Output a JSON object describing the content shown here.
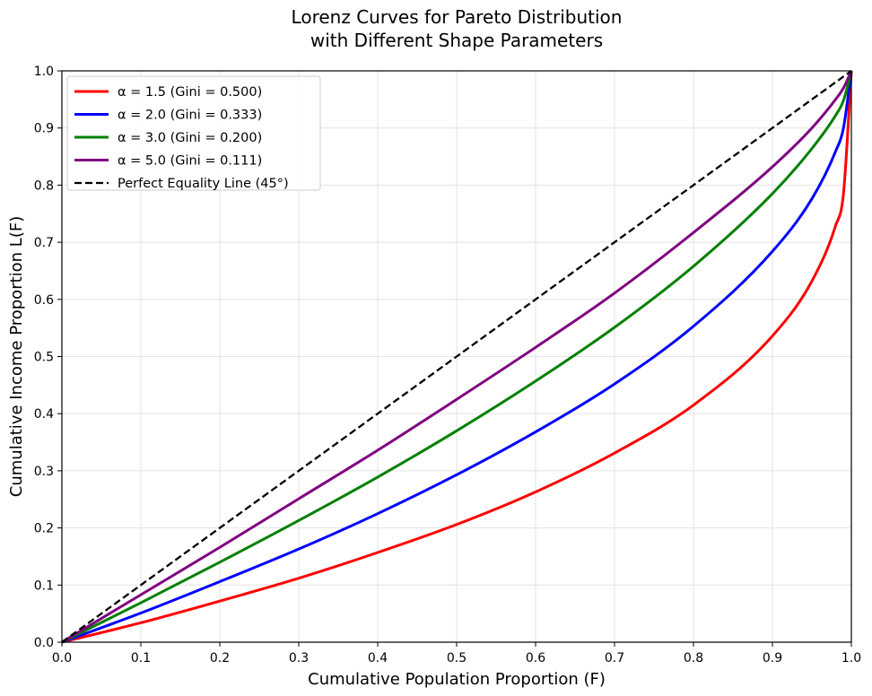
{
  "chart_data": {
    "type": "line",
    "title_line1": "Lorenz Curves for Pareto Distribution",
    "title_line2": "with Different Shape Parameters",
    "xlabel": "Cumulative Population Proportion (F)",
    "ylabel": "Cumulative Income Proportion L(F)",
    "xlim": [
      0,
      1
    ],
    "ylim": [
      0,
      1
    ],
    "xticks": [
      "0.0",
      "0.1",
      "0.2",
      "0.3",
      "0.4",
      "0.5",
      "0.6",
      "0.7",
      "0.8",
      "0.9",
      "1.0"
    ],
    "yticks": [
      "0.0",
      "0.1",
      "0.2",
      "0.3",
      "0.4",
      "0.5",
      "0.6",
      "0.7",
      "0.8",
      "0.9",
      "1.0"
    ],
    "grid": true,
    "legend_position": "top-left",
    "x": [
      0.0,
      0.1,
      0.2,
      0.3,
      0.4,
      0.5,
      0.6,
      0.7,
      0.8,
      0.9,
      0.95,
      0.98,
      0.99,
      1.0
    ],
    "series": [
      {
        "name": "α = 1.5 (Gini = 0.500)",
        "color": "#ff0000",
        "dash": "solid",
        "values": [
          0.0,
          0.034,
          0.072,
          0.112,
          0.157,
          0.206,
          0.263,
          0.331,
          0.415,
          0.536,
          0.632,
          0.729,
          0.785,
          1.0
        ]
      },
      {
        "name": "α = 2.0 (Gini = 0.333)",
        "color": "#0000ff",
        "dash": "solid",
        "values": [
          0.0,
          0.051,
          0.106,
          0.163,
          0.225,
          0.293,
          0.368,
          0.452,
          0.553,
          0.684,
          0.776,
          0.859,
          0.9,
          1.0
        ]
      },
      {
        "name": "α = 3.0 (Gini = 0.200)",
        "color": "#008000",
        "dash": "solid",
        "values": [
          0.0,
          0.069,
          0.14,
          0.213,
          0.289,
          0.37,
          0.457,
          0.551,
          0.658,
          0.785,
          0.864,
          0.922,
          0.948,
          1.0
        ]
      },
      {
        "name": "α = 5.0 (Gini = 0.111)",
        "color": "#800080",
        "dash": "solid",
        "values": [
          0.0,
          0.083,
          0.166,
          0.251,
          0.336,
          0.425,
          0.516,
          0.611,
          0.717,
          0.832,
          0.9,
          0.95,
          0.97,
          1.0
        ]
      },
      {
        "name": "Perfect Equality Line (45°)",
        "color": "#000000",
        "dash": "dashed",
        "values": [
          0.0,
          0.1,
          0.2,
          0.3,
          0.4,
          0.5,
          0.6,
          0.7,
          0.8,
          0.9,
          0.95,
          0.98,
          0.99,
          1.0
        ]
      }
    ]
  }
}
